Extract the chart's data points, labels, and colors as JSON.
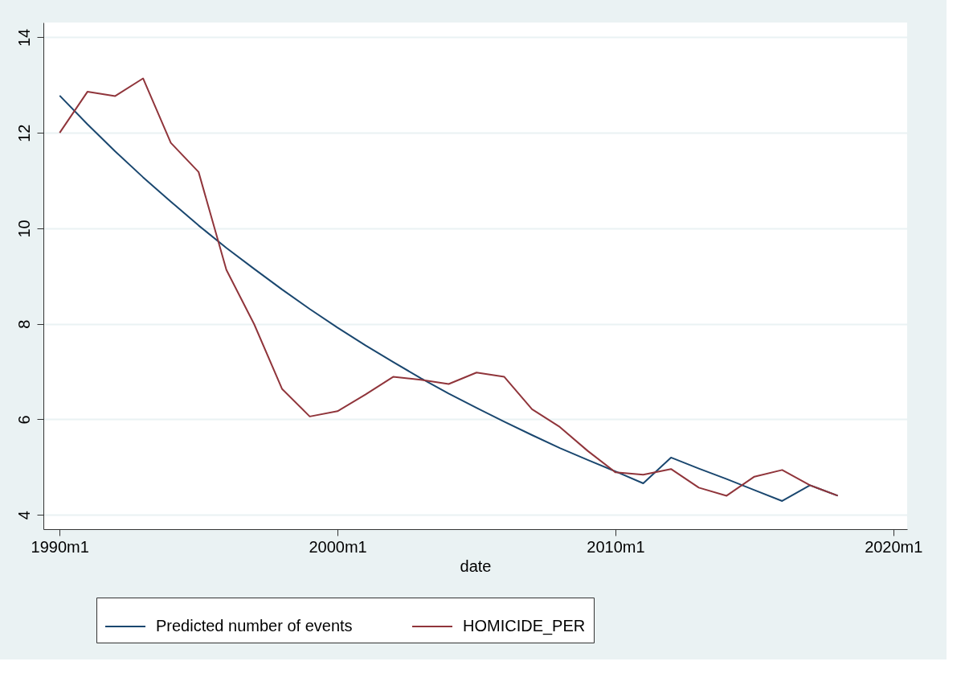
{
  "chart_data": {
    "type": "line",
    "xlabel": "date",
    "x": [
      "1990-01",
      "1991-01",
      "1992-01",
      "1993-01",
      "1994-01",
      "1995-01",
      "1996-01",
      "1997-01",
      "1998-01",
      "1999-01",
      "2000-01",
      "2001-01",
      "2002-01",
      "2003-01",
      "2004-01",
      "2005-01",
      "2006-01",
      "2007-01",
      "2008-01",
      "2009-01",
      "2010-01",
      "2011-01",
      "2012-01",
      "2013-01",
      "2014-01",
      "2015-01",
      "2016-01",
      "2017-01",
      "2018-01"
    ],
    "series": [
      {
        "name": "Predicted number of events",
        "color": "#1a476f",
        "values": [
          12.78,
          12.18,
          11.61,
          11.07,
          10.56,
          10.06,
          9.59,
          9.15,
          8.72,
          8.31,
          7.92,
          7.55,
          7.2,
          6.86,
          6.54,
          6.24,
          5.95,
          5.67,
          5.4,
          5.15,
          4.91,
          4.66,
          5.2,
          4.97,
          4.75,
          4.52,
          4.29,
          4.62,
          4.4
        ]
      },
      {
        "name": "HOMICIDE_PER",
        "color": "#90353b",
        "values": [
          12.0,
          12.86,
          12.77,
          13.14,
          11.79,
          11.18,
          9.13,
          7.99,
          6.64,
          6.06,
          6.17,
          6.52,
          6.89,
          6.83,
          6.74,
          6.98,
          6.89,
          6.21,
          5.84,
          5.34,
          4.89,
          4.84,
          4.96,
          4.57,
          4.4,
          4.8,
          4.94,
          4.62,
          4.4
        ]
      }
    ],
    "xlim": [
      "1989-06",
      "2020-07"
    ],
    "ylim": [
      3.7,
      14.31
    ],
    "xticks": [
      {
        "value": "1990-01",
        "label": "1990m1"
      },
      {
        "value": "2000-01",
        "label": "2000m1"
      },
      {
        "value": "2010-01",
        "label": "2010m1"
      },
      {
        "value": "2020-01",
        "label": "2020m1"
      }
    ],
    "yticks": [
      4,
      6,
      8,
      10,
      12,
      14
    ],
    "grid": "y",
    "legend": "bottom",
    "marker": "none",
    "line_style": "solid"
  }
}
